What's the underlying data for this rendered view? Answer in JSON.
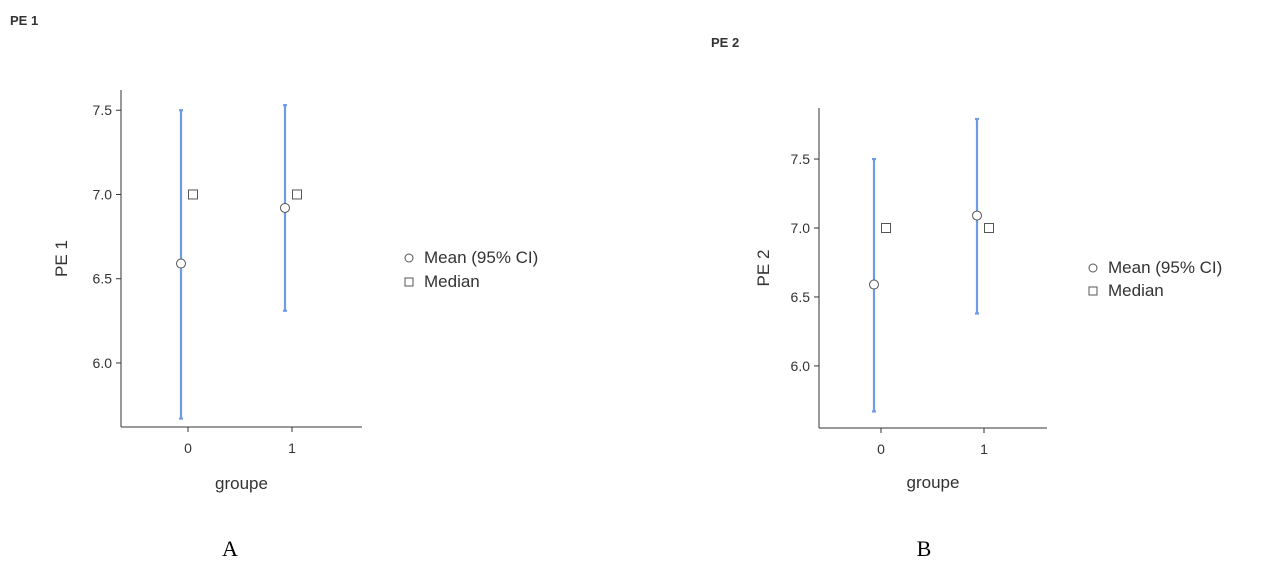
{
  "chart_data": [
    {
      "type": "scatter",
      "title": "PE 1",
      "caption": "A",
      "xlabel": "groupe",
      "ylabel": "PE 1",
      "categories": [
        "0",
        "1"
      ],
      "yticks": [
        "6.0",
        "6.5",
        "7.0",
        "7.5"
      ],
      "ylim": [
        5.62,
        7.62
      ],
      "legend": [
        "Mean (95% CI)",
        "Median"
      ],
      "legend_position": "right",
      "series": [
        {
          "name": "Mean (95% CI)",
          "values": [
            6.59,
            6.92
          ],
          "ci_low": [
            5.67,
            6.31
          ],
          "ci_high": [
            7.5,
            7.53
          ]
        },
        {
          "name": "Median",
          "values": [
            7.0,
            7.0
          ]
        }
      ],
      "colors": {
        "ci": "#6f9be6",
        "marker_stroke": "#555555",
        "axis": "#333333"
      }
    },
    {
      "type": "scatter",
      "title": "PE 2",
      "caption": "B",
      "xlabel": "groupe",
      "ylabel": "PE 2",
      "categories": [
        "0",
        "1"
      ],
      "yticks": [
        "6.0",
        "6.5",
        "7.0",
        "7.5"
      ],
      "ylim": [
        5.55,
        7.87
      ],
      "legend": [
        "Mean (95% CI)",
        "Median"
      ],
      "legend_position": "right",
      "series": [
        {
          "name": "Mean (95% CI)",
          "values": [
            6.59,
            7.09
          ],
          "ci_low": [
            5.67,
            6.38
          ],
          "ci_high": [
            7.5,
            7.79
          ]
        },
        {
          "name": "Median",
          "values": [
            7.0,
            7.0
          ]
        }
      ],
      "colors": {
        "ci": "#6f9be6",
        "marker_stroke": "#555555",
        "axis": "#333333"
      }
    }
  ]
}
